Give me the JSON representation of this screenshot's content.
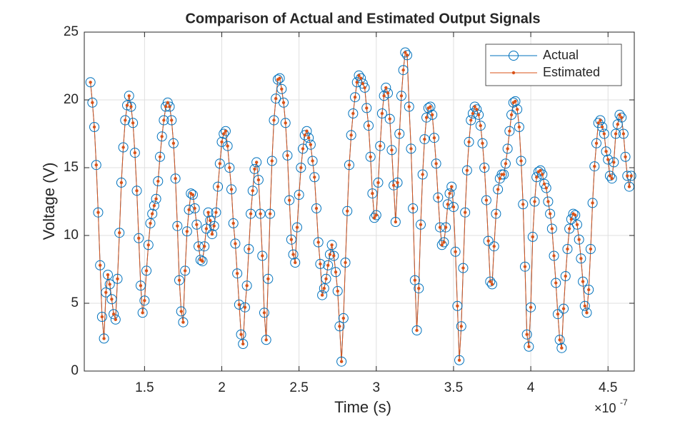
{
  "chart_data": {
    "type": "line",
    "title": "Comparison of Actual and Estimated Output Signals",
    "x_label": "Time (s)",
    "y_label": "Voltage (V)",
    "x_multiplier": "×10",
    "x_multiplier_exponent": "-7",
    "xlim": [
      1.11,
      4.67
    ],
    "ylim": [
      0,
      25
    ],
    "xticks": [
      1.5,
      2,
      2.5,
      3,
      3.5,
      4,
      4.5
    ],
    "yticks": [
      0,
      5,
      10,
      15,
      20,
      25
    ],
    "grid": true,
    "legend": "northeast",
    "x": [
      1.15,
      1.1625,
      1.175,
      1.1875,
      1.2,
      1.2125,
      1.225,
      1.2375,
      1.25,
      1.2625,
      1.275,
      1.2875,
      1.3,
      1.3125,
      1.325,
      1.3375,
      1.35,
      1.3625,
      1.375,
      1.3875,
      1.4,
      1.4125,
      1.425,
      1.4375,
      1.45,
      1.4625,
      1.475,
      1.4875,
      1.5,
      1.5125,
      1.525,
      1.5375,
      1.55,
      1.5625,
      1.575,
      1.5875,
      1.6,
      1.6125,
      1.625,
      1.6375,
      1.65,
      1.6625,
      1.675,
      1.6875,
      1.7,
      1.7125,
      1.725,
      1.7375,
      1.75,
      1.7625,
      1.775,
      1.7875,
      1.8,
      1.8125,
      1.825,
      1.8375,
      1.85,
      1.8625,
      1.875,
      1.8875,
      1.9,
      1.9125,
      1.925,
      1.9375,
      1.95,
      1.9625,
      1.975,
      1.9875,
      2,
      2.0125,
      2.025,
      2.0375,
      2.05,
      2.0625,
      2.075,
      2.0875,
      2.1,
      2.1125,
      2.125,
      2.1375,
      2.15,
      2.1625,
      2.175,
      2.1875,
      2.2,
      2.2125,
      2.225,
      2.2375,
      2.25,
      2.2625,
      2.275,
      2.2875,
      2.3,
      2.3125,
      2.325,
      2.3375,
      2.35,
      2.3625,
      2.375,
      2.3875,
      2.4,
      2.4125,
      2.425,
      2.4375,
      2.45,
      2.4625,
      2.475,
      2.4875,
      2.5,
      2.5125,
      2.525,
      2.5375,
      2.55,
      2.5625,
      2.575,
      2.5875,
      2.6,
      2.6125,
      2.625,
      2.6375,
      2.65,
      2.6625,
      2.675,
      2.6875,
      2.7,
      2.7125,
      2.725,
      2.7375,
      2.75,
      2.7625,
      2.775,
      2.7875,
      2.8,
      2.8125,
      2.825,
      2.8375,
      2.85,
      2.8625,
      2.875,
      2.8875,
      2.9,
      2.9125,
      2.925,
      2.9375,
      2.95,
      2.9625,
      2.975,
      2.9875,
      3,
      3.0125,
      3.025,
      3.0375,
      3.05,
      3.0625,
      3.075,
      3.0875,
      3.1,
      3.1125,
      3.125,
      3.1375,
      3.15,
      3.1625,
      3.175,
      3.1875,
      3.2,
      3.2125,
      3.225,
      3.2375,
      3.25,
      3.2625,
      3.275,
      3.2875,
      3.3,
      3.3125,
      3.325,
      3.3375,
      3.35,
      3.3625,
      3.375,
      3.3875,
      3.4,
      3.4125,
      3.425,
      3.4375,
      3.45,
      3.4625,
      3.475,
      3.4875,
      3.5,
      3.5125,
      3.525,
      3.5375,
      3.55,
      3.5625,
      3.575,
      3.5875,
      3.6,
      3.6125,
      3.625,
      3.6375,
      3.65,
      3.6625,
      3.675,
      3.6875,
      3.7,
      3.7125,
      3.725,
      3.7375,
      3.75,
      3.7625,
      3.775,
      3.7875,
      3.8,
      3.8125,
      3.825,
      3.8375,
      3.85,
      3.8625,
      3.875,
      3.8875,
      3.9,
      3.9125,
      3.925,
      3.9375,
      3.95,
      3.9625,
      3.975,
      3.9875,
      4,
      4.0125,
      4.025,
      4.0375,
      4.05,
      4.0625,
      4.075,
      4.0875,
      4.1,
      4.1125,
      4.125,
      4.1375,
      4.15,
      4.1625,
      4.175,
      4.1875,
      4.2,
      4.2125,
      4.225,
      4.2375,
      4.25,
      4.2625,
      4.275,
      4.2875,
      4.3,
      4.3125,
      4.325,
      4.3375,
      4.35,
      4.3625,
      4.375,
      4.3875,
      4.4,
      4.4125,
      4.425,
      4.4375,
      4.45,
      4.4625,
      4.475,
      4.4875,
      4.5,
      4.5125,
      4.525,
      4.5375,
      4.55,
      4.5625,
      4.575,
      4.5875,
      4.6,
      4.6125,
      4.625,
      4.6375,
      4.65
    ],
    "series": [
      {
        "name": "Actual",
        "color": "#0072bd",
        "marker": "circle",
        "values": [
          21.3,
          19.8,
          18,
          15.2,
          11.7,
          7.8,
          4,
          2.4,
          5.8,
          7.1,
          6.4,
          5.3,
          4.2,
          3.8,
          6.8,
          10.2,
          13.9,
          16.5,
          18.5,
          19.6,
          20.3,
          19.5,
          18.3,
          16.1,
          13.3,
          9.8,
          6.3,
          4.3,
          5.2,
          7.4,
          9.3,
          10.9,
          11.6,
          12.2,
          12.7,
          14,
          15.8,
          17.3,
          18.5,
          19.5,
          19.8,
          19.5,
          18.5,
          16.8,
          14.2,
          10.7,
          6.7,
          4.4,
          3.6,
          7.4,
          10.3,
          11.9,
          13.1,
          13,
          12,
          10.8,
          9.2,
          8.2,
          8.1,
          9.2,
          10.5,
          11.7,
          11.1,
          10.1,
          10.7,
          11.7,
          13.6,
          15.3,
          16.9,
          17.5,
          17.7,
          16.6,
          15,
          13.4,
          10.9,
          9.4,
          7.2,
          4.9,
          2.7,
          2,
          4.7,
          6.3,
          9,
          11.6,
          13.3,
          14.9,
          15.4,
          14.1,
          11.6,
          8.5,
          4.3,
          2.3,
          6.8,
          11.6,
          15.5,
          18.5,
          20.1,
          21.5,
          21.6,
          20.8,
          19.8,
          18.3,
          15.9,
          12.6,
          9.7,
          8.6,
          8,
          10.6,
          13,
          15,
          16.4,
          17.4,
          17.7,
          17.2,
          16.7,
          15.5,
          14.3,
          12,
          9.5,
          7.9,
          5.6,
          6.1,
          6.8,
          7.8,
          8.6,
          9.3,
          8.5,
          7.3,
          5.9,
          3.3,
          0.7,
          3.9,
          8,
          11.8,
          15.2,
          17.4,
          19,
          20.2,
          21.3,
          21.8,
          21.6,
          21.2,
          20.9,
          19.4,
          18.1,
          15.8,
          13.1,
          11.3,
          11.5,
          13.9,
          16.6,
          19,
          20.3,
          20.9,
          20.5,
          18.6,
          16.3,
          13.7,
          11,
          13.9,
          17.5,
          20.3,
          22.2,
          23.5,
          23.3,
          19.5,
          16.4,
          12,
          6.7,
          3,
          6.1,
          10.8,
          14.5,
          17.1,
          18.7,
          19.4,
          19.5,
          18.9,
          17.2,
          15.3,
          12.8,
          10.6,
          9.3,
          9.5,
          10.6,
          12.3,
          13.1,
          13.6,
          12.1,
          8.8,
          4.8,
          0.8,
          3.3,
          7.6,
          11.7,
          14.8,
          16.9,
          18.5,
          19,
          19.5,
          19.3,
          18.9,
          18.1,
          16.8,
          15,
          12.6,
          9.6,
          6.6,
          6.4,
          9.2,
          11.6,
          13.4,
          14.2,
          14.5,
          14.5,
          15.3,
          16.4,
          17.7,
          18.9,
          19.8,
          19.9,
          19.3,
          18,
          15.5,
          12.3,
          7.7,
          2.7,
          1.8,
          4.7,
          9.9,
          12.5,
          14.3,
          14.7,
          14.8,
          14.5,
          13.8,
          13.5,
          12.5,
          11.6,
          10.5,
          8.5,
          6.5,
          4.2,
          2.3,
          1.7,
          4.6,
          7,
          9,
          10.5,
          11.2,
          11.6,
          11.5,
          10.8,
          9.7,
          8.3,
          6.6,
          4.8,
          4.3,
          6,
          9,
          12.4,
          15.1,
          16.8,
          18.3,
          18.5,
          18,
          17.5,
          16.2,
          15.6,
          14.4,
          14.2,
          15.4,
          17.5,
          18.2,
          18.9,
          18.7,
          17.5,
          15.8,
          14.4,
          13.6,
          14.4
        ]
      },
      {
        "name": "Estimated",
        "color": "#d95319",
        "marker": "dot",
        "values": [
          21.3,
          19.8,
          18,
          15.2,
          11.7,
          7.8,
          4,
          2.4,
          5.8,
          7.1,
          6.4,
          5.3,
          4.2,
          3.8,
          6.8,
          10.2,
          13.9,
          16.5,
          18.5,
          19.6,
          20.3,
          19.5,
          18.3,
          16.1,
          13.3,
          9.8,
          6.3,
          4.3,
          5.2,
          7.4,
          9.3,
          10.9,
          11.6,
          12.2,
          12.7,
          14,
          15.8,
          17.3,
          18.5,
          19.5,
          19.8,
          19.5,
          18.5,
          16.8,
          14.2,
          10.7,
          6.7,
          4.4,
          3.6,
          7.4,
          10.3,
          11.9,
          13.1,
          13,
          12,
          10.8,
          9.2,
          8.2,
          8.1,
          9.2,
          10.5,
          11.7,
          11.1,
          10.1,
          10.7,
          11.7,
          13.6,
          15.3,
          16.9,
          17.5,
          17.7,
          16.6,
          15,
          13.4,
          10.9,
          9.4,
          7.2,
          4.9,
          2.7,
          2,
          4.7,
          6.3,
          9,
          11.6,
          13.3,
          14.9,
          15.4,
          14.1,
          11.6,
          8.5,
          4.3,
          2.3,
          6.8,
          11.6,
          15.5,
          18.5,
          20.1,
          21.5,
          21.6,
          20.8,
          19.8,
          18.3,
          15.9,
          12.6,
          9.7,
          8.6,
          8,
          10.6,
          13,
          15,
          16.4,
          17.4,
          17.7,
          17.2,
          16.7,
          15.5,
          14.3,
          12,
          9.5,
          7.9,
          5.6,
          6.1,
          6.8,
          7.8,
          8.6,
          9.3,
          8.5,
          7.3,
          5.9,
          3.3,
          0.7,
          3.9,
          8,
          11.8,
          15.2,
          17.4,
          19,
          20.2,
          21.3,
          21.8,
          21.6,
          21.2,
          20.9,
          19.4,
          18.1,
          15.8,
          13.1,
          11.3,
          11.5,
          13.9,
          16.6,
          19,
          20.3,
          20.9,
          20.5,
          18.6,
          16.3,
          13.7,
          11,
          13.9,
          17.5,
          20.3,
          22.2,
          23.5,
          23.3,
          19.5,
          16.4,
          12,
          6.7,
          3,
          6.1,
          10.8,
          14.5,
          17.1,
          18.7,
          19.4,
          19.5,
          18.9,
          17.2,
          15.3,
          12.8,
          10.6,
          9.3,
          9.5,
          10.6,
          12.3,
          13.1,
          13.6,
          12.1,
          8.8,
          4.8,
          0.8,
          3.3,
          7.6,
          11.7,
          14.8,
          16.9,
          18.5,
          19,
          19.5,
          19.3,
          18.9,
          18.1,
          16.8,
          15,
          12.6,
          9.6,
          6.6,
          6.4,
          9.2,
          11.6,
          13.4,
          14.2,
          14.5,
          14.5,
          15.3,
          16.4,
          17.7,
          18.9,
          19.8,
          19.9,
          19.3,
          18,
          15.5,
          12.3,
          7.7,
          2.7,
          1.8,
          4.7,
          9.9,
          12.5,
          14.3,
          14.7,
          14.8,
          14.5,
          13.8,
          13.5,
          12.5,
          11.6,
          10.5,
          8.5,
          6.5,
          4.2,
          2.3,
          1.7,
          4.6,
          7,
          9,
          10.5,
          11.2,
          11.6,
          11.5,
          10.8,
          9.7,
          8.3,
          6.6,
          4.8,
          4.3,
          6,
          9,
          12.4,
          15.1,
          16.8,
          18.3,
          18.5,
          18,
          17.5,
          16.2,
          15.6,
          14.4,
          14.2,
          15.4,
          17.5,
          18.2,
          18.9,
          18.7,
          17.5,
          15.8,
          14.4,
          13.6,
          14.4
        ]
      }
    ]
  }
}
